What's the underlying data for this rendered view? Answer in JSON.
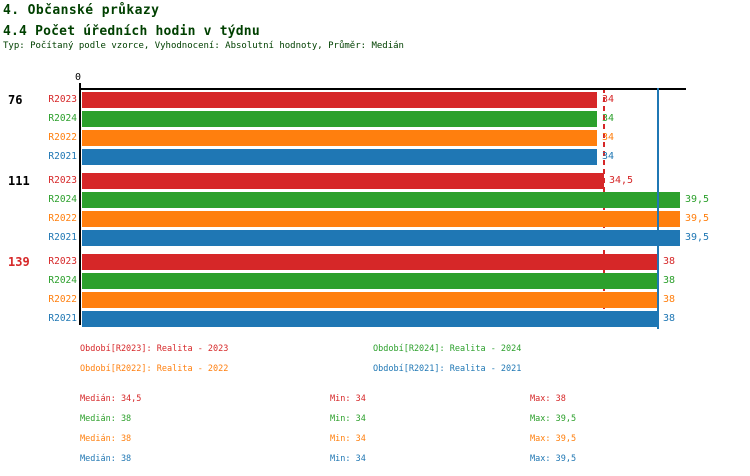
{
  "header": {
    "title": "4. Občanské průkazy",
    "subtitle": "4.4 Počet úředních hodin v týdnu",
    "meta": "Typ: Počítaný podle vzorce, Vyhodnocení: Absolutní hodnoty, Průměr: Medián"
  },
  "colors": {
    "title_text": "#004000",
    "axis": "#000000",
    "r2023": "#d62728",
    "r2024": "#2ca02c",
    "r2022": "#ff7f0e",
    "r2021": "#1f77b4"
  },
  "chart_data": {
    "type": "bar",
    "orientation": "horizontal",
    "x_axis": {
      "origin_label": "0",
      "xlim": [
        0,
        40
      ],
      "grid": false
    },
    "series": [
      {
        "key": "R2023",
        "label": "R2023",
        "color": "#d62728"
      },
      {
        "key": "R2024",
        "label": "R2024",
        "color": "#2ca02c"
      },
      {
        "key": "R2022",
        "label": "R2022",
        "color": "#ff7f0e"
      },
      {
        "key": "R2021",
        "label": "R2021",
        "color": "#1f77b4"
      }
    ],
    "groups": [
      {
        "label": "76",
        "label_color": "#000000",
        "values": [
          34,
          34,
          34,
          34
        ],
        "value_labels": [
          "34",
          "34",
          "34",
          "34"
        ]
      },
      {
        "label": "111",
        "label_color": "#000000",
        "values": [
          34.5,
          39.5,
          39.5,
          39.5
        ],
        "value_labels": [
          "34,5",
          "39,5",
          "39,5",
          "39,5"
        ]
      },
      {
        "label": "139",
        "label_color": "#d62728",
        "values": [
          38,
          38,
          38,
          38
        ],
        "value_labels": [
          "38",
          "38",
          "38",
          "38"
        ]
      }
    ],
    "reference_lines": [
      {
        "name": "median-r2023",
        "value": 34.5,
        "color": "#d62728",
        "style": "dashed"
      },
      {
        "name": "median-r2021",
        "value": 38,
        "color": "#1f77b4",
        "style": "solid"
      }
    ]
  },
  "legend": {
    "rows": [
      [
        {
          "text": "Období[R2023]: Realita - 2023",
          "color": "#d62728"
        },
        {
          "text": "Období[R2024]: Realita - 2024",
          "color": "#2ca02c"
        }
      ],
      [
        {
          "text": "Období[R2022]: Realita - 2022",
          "color": "#ff7f0e"
        },
        {
          "text": "Období[R2021]: Realita - 2021",
          "color": "#1f77b4"
        }
      ]
    ]
  },
  "stats": {
    "rows": [
      {
        "color": "#d62728",
        "median": "Medián: 34,5",
        "min": "Min: 34",
        "max": "Max: 38"
      },
      {
        "color": "#2ca02c",
        "median": "Medián: 38",
        "min": "Min: 34",
        "max": "Max: 39,5"
      },
      {
        "color": "#ff7f0e",
        "median": "Medián: 38",
        "min": "Min: 34",
        "max": "Max: 39,5"
      },
      {
        "color": "#1f77b4",
        "median": "Medián: 38",
        "min": "Min: 34",
        "max": "Max: 39,5"
      }
    ]
  }
}
